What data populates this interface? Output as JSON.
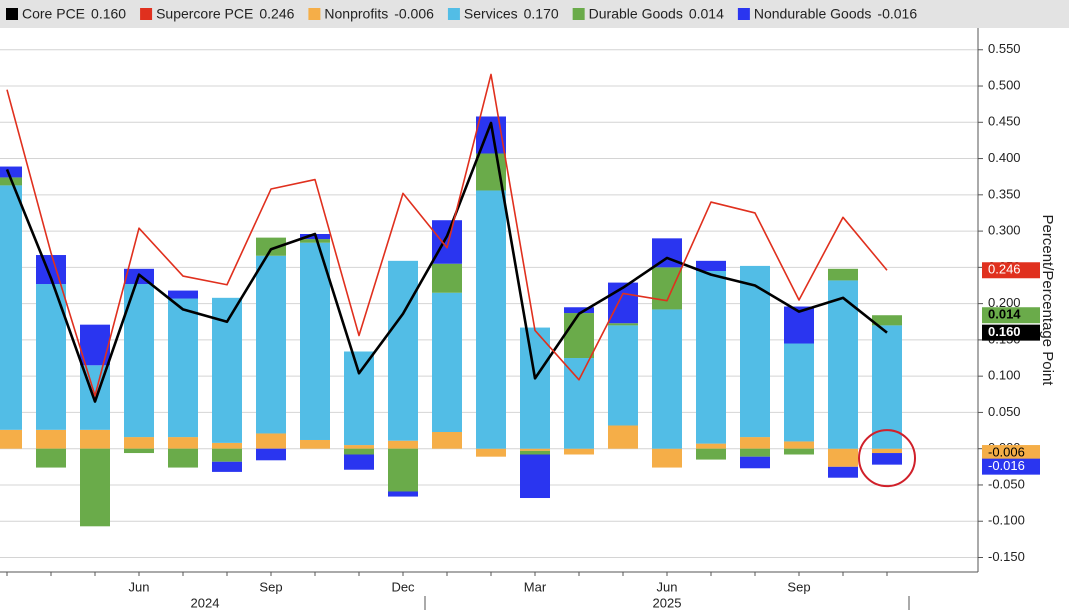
{
  "chart_data": {
    "type": "bar-line",
    "y_axis_label": "Percent/Percentage Point",
    "categories": [
      null,
      null,
      null,
      "Jun",
      null,
      null,
      "Sep",
      null,
      null,
      "Dec",
      null,
      null,
      "Mar",
      null,
      null,
      "Jun",
      null,
      null,
      "Sep",
      null,
      null
    ],
    "x_groups": [
      {
        "label": "2024",
        "count": 10
      },
      {
        "label": "2025",
        "count": 11
      }
    ],
    "ylim": [
      -0.17,
      0.58
    ],
    "yticks": [
      {
        "value": -0.15,
        "label": "-0.150"
      },
      {
        "value": -0.1,
        "label": "-0.100"
      },
      {
        "value": -0.05,
        "label": "-0.050"
      },
      {
        "value": 0,
        "label": "0.000"
      },
      {
        "value": 0.05,
        "label": "0.050"
      },
      {
        "value": 0.1,
        "label": "0.100"
      },
      {
        "value": 0.15,
        "label": "0.150"
      },
      {
        "value": 0.2,
        "label": "0.200"
      },
      {
        "value": 0.25,
        "label": "0.250"
      },
      {
        "value": 0.3,
        "label": "0.300"
      },
      {
        "value": 0.35,
        "label": "0.350"
      },
      {
        "value": 0.4,
        "label": "0.400"
      },
      {
        "value": 0.45,
        "label": "0.450"
      },
      {
        "value": 0.5,
        "label": "0.500"
      },
      {
        "value": 0.55,
        "label": "0.550"
      }
    ],
    "grid": true,
    "series": [
      {
        "name": "Core PCE",
        "kind": "line",
        "color": "#000000",
        "last_label": "0.160",
        "values": [
          0.385,
          0.235,
          0.065,
          0.24,
          0.192,
          0.175,
          0.275,
          0.296,
          0.104,
          0.186,
          0.293,
          0.449,
          0.097,
          0.186,
          0.222,
          0.263,
          0.24,
          0.225,
          0.189,
          0.208,
          0.16
        ]
      },
      {
        "name": "Supercore PCE",
        "kind": "line",
        "color": "#e0301e",
        "last_label": "0.246",
        "values": [
          0.495,
          0.27,
          0.073,
          0.304,
          0.238,
          0.226,
          0.358,
          0.371,
          0.156,
          0.352,
          0.277,
          0.516,
          0.163,
          0.095,
          0.214,
          0.204,
          0.34,
          0.325,
          0.205,
          0.319,
          0.246
        ]
      },
      {
        "name": "Nonprofits",
        "kind": "bar",
        "color": "#f5ae48",
        "last_label": "-0.006",
        "values": [
          0.026,
          0.026,
          0.026,
          0.016,
          0.016,
          0.008,
          0.021,
          0.012,
          0.005,
          0.011,
          0.023,
          -0.011,
          -0.003,
          -0.008,
          0.032,
          -0.026,
          0.007,
          0.016,
          0.01,
          -0.025,
          -0.006
        ]
      },
      {
        "name": "Services",
        "kind": "bar",
        "color": "#52bde6",
        "last_label": "0.170",
        "values": [
          0.337,
          0.201,
          0.089,
          0.211,
          0.191,
          0.2,
          0.245,
          0.272,
          0.129,
          0.248,
          0.192,
          0.356,
          0.167,
          0.125,
          0.138,
          0.192,
          0.238,
          0.236,
          0.135,
          0.232,
          0.17
        ]
      },
      {
        "name": "Durable Goods",
        "kind": "bar",
        "color": "#6aab4a",
        "last_label": "0.014",
        "values": [
          0.011,
          -0.026,
          -0.107,
          -0.006,
          -0.026,
          -0.018,
          0.025,
          0.005,
          -0.008,
          -0.059,
          0.04,
          0.051,
          -0.005,
          0.062,
          0.003,
          0.058,
          -0.015,
          -0.011,
          -0.008,
          0.016,
          0.014
        ]
      },
      {
        "name": "Nondurable Goods",
        "kind": "bar",
        "color": "#2a35f0",
        "last_label": "-0.016",
        "values": [
          0.015,
          0.04,
          0.056,
          0.021,
          0.011,
          -0.014,
          -0.016,
          0.007,
          -0.021,
          -0.007,
          0.06,
          0.051,
          -0.06,
          0.008,
          0.056,
          0.04,
          0.014,
          -0.016,
          0.051,
          -0.015,
          -0.016
        ]
      }
    ]
  }
}
